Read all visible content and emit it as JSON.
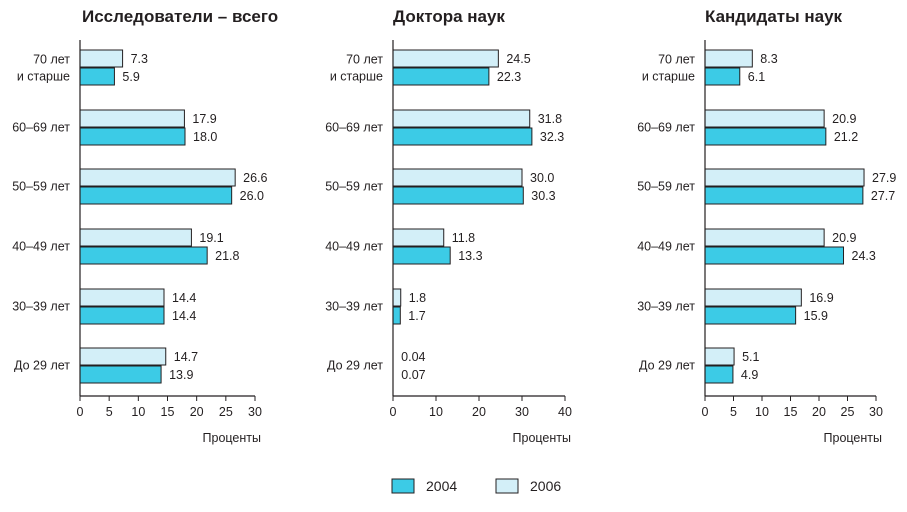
{
  "chart_data": [
    {
      "type": "bar",
      "orientation": "horizontal",
      "title": "Исследователи – всего",
      "xlabel": "Проценты",
      "categories": [
        [
          "70 лет",
          "и старше"
        ],
        [
          "60–69 лет"
        ],
        [
          "50–59 лет"
        ],
        [
          "40–49 лет"
        ],
        [
          "30–39 лет"
        ],
        [
          "До 29 лет"
        ]
      ],
      "series": [
        {
          "name": "2006",
          "values": [
            7.3,
            17.9,
            26.6,
            19.1,
            14.4,
            14.7
          ],
          "labels": [
            "7.3",
            "17.9",
            "26.6",
            "19.1",
            "14.4",
            "14.7"
          ]
        },
        {
          "name": "2004",
          "values": [
            5.9,
            18.0,
            26.0,
            21.8,
            14.4,
            13.9
          ],
          "labels": [
            "5.9",
            "18.0",
            "26.0",
            "21.8",
            "14.4",
            "13.9"
          ]
        }
      ],
      "xlim": [
        0,
        30
      ],
      "xticks": [
        0,
        5,
        10,
        15,
        20,
        25,
        30
      ]
    },
    {
      "type": "bar",
      "orientation": "horizontal",
      "title": "Доктора наук",
      "xlabel": "Проценты",
      "categories": [
        [
          "70 лет",
          "и старше"
        ],
        [
          "60–69 лет"
        ],
        [
          "50–59 лет"
        ],
        [
          "40–49 лет"
        ],
        [
          "30–39 лет"
        ],
        [
          "До 29 лет"
        ]
      ],
      "series": [
        {
          "name": "2006",
          "values": [
            24.5,
            31.8,
            30.0,
            11.8,
            1.8,
            0.04
          ],
          "labels": [
            "24.5",
            "31.8",
            "30.0",
            "11.8",
            "1.8",
            "0.04"
          ]
        },
        {
          "name": "2004",
          "values": [
            22.3,
            32.3,
            30.3,
            13.3,
            1.7,
            0.07
          ],
          "labels": [
            "22.3",
            "32.3",
            "30.3",
            "13.3",
            "1.7",
            "0.07"
          ]
        }
      ],
      "xlim": [
        0,
        40
      ],
      "xticks": [
        0,
        10,
        20,
        30,
        40
      ]
    },
    {
      "type": "bar",
      "orientation": "horizontal",
      "title": "Кандидаты наук",
      "xlabel": "Проценты",
      "categories": [
        [
          "70 лет",
          "и старше"
        ],
        [
          "60–69 лет"
        ],
        [
          "50–59 лет"
        ],
        [
          "40–49 лет"
        ],
        [
          "30–39 лет"
        ],
        [
          "До 29 лет"
        ]
      ],
      "series": [
        {
          "name": "2006",
          "values": [
            8.3,
            20.9,
            27.9,
            20.9,
            16.9,
            5.1
          ],
          "labels": [
            "8.3",
            "20.9",
            "27.9",
            "20.9",
            "16.9",
            "5.1"
          ]
        },
        {
          "name": "2004",
          "values": [
            6.1,
            21.2,
            27.7,
            24.3,
            15.9,
            4.9
          ],
          "labels": [
            "6.1",
            "21.2",
            "27.7",
            "24.3",
            "15.9",
            "4.9"
          ]
        }
      ],
      "xlim": [
        0,
        30
      ],
      "xticks": [
        0,
        5,
        10,
        15,
        20,
        25,
        30
      ]
    }
  ],
  "legend": {
    "items": [
      {
        "label": "2004",
        "color": "#3ccbe6"
      },
      {
        "label": "2006",
        "color": "#d3eff8"
      }
    ],
    "placement": "bottom-center"
  },
  "colors": {
    "series_2004": "#3ccbe6",
    "series_2006": "#d3eff8",
    "bar_stroke": "#231f20",
    "axis": "#231f20"
  }
}
